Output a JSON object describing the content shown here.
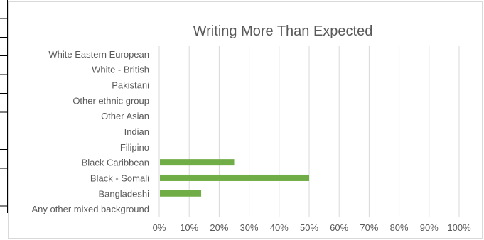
{
  "chart_data": {
    "type": "bar",
    "orientation": "horizontal",
    "title": "Writing More Than Expected",
    "categories": [
      "White Eastern European",
      "White - British",
      "Pakistani",
      "Other ethnic group",
      "Other Asian",
      "Indian",
      "Filipino",
      "Black Caribbean",
      "Black - Somali",
      "Bangladeshi",
      "Any other mixed background"
    ],
    "values": [
      0,
      0,
      0,
      0,
      0,
      0,
      0,
      0.25,
      0.5,
      0.14,
      0
    ],
    "xlim": [
      0,
      1
    ],
    "x_ticks": [
      "0%",
      "10%",
      "20%",
      "30%",
      "40%",
      "50%",
      "60%",
      "70%",
      "80%",
      "90%",
      "100%"
    ],
    "xlabel": "",
    "ylabel": "",
    "grid": "vertical",
    "legend": "none",
    "bar_color": "#70ad47",
    "grid_color": "#d9d9d9"
  }
}
